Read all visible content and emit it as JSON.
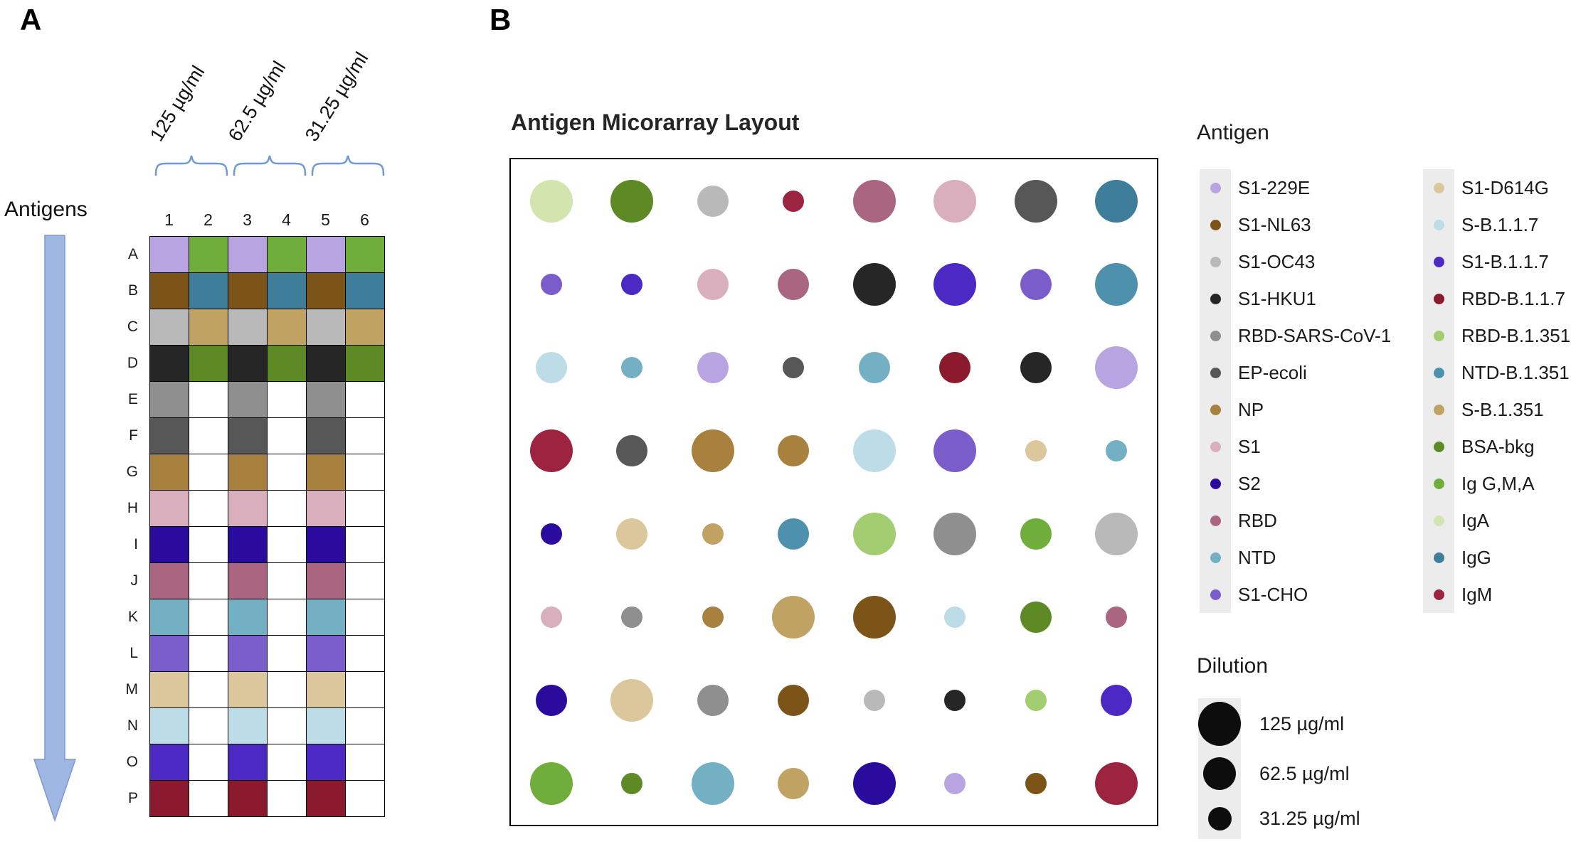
{
  "palette": {
    "S1-229E": "#b7a4e0",
    "S1-NL63": "#7d5418",
    "S1-OC43": "#b9b9b9",
    "S1-HKU1": "#262626",
    "RBD-SARS-CoV-1": "#8f8f8f",
    "EP-ecoli": "#575757",
    "NP": "#a8813e",
    "S1": "#d9afbd",
    "S2": "#2a0b9e",
    "RBD": "#aa6580",
    "NTD": "#74b0c4",
    "S1-CHO": "#7a5ccb",
    "S1-D614G": "#dcc79c",
    "S-B.1.1.7": "#bcdce8",
    "S1-B.1.1.7": "#4c28c4",
    "RBD-B.1.1.7": "#8c1a2e",
    "RBD-B.1.351": "#a2cd70",
    "NTD-B.1.351": "#4e91ad",
    "S-B.1.351": "#c0a263",
    "BSA-bkg": "#5d8a24",
    "Ig G,M,A": "#6fae3a",
    "IgA": "#d3e5ae",
    "IgG": "#3f7e9b",
    "IgM": "#9c2440"
  },
  "panel_a": {
    "label": "A",
    "axis_label": "Antigens",
    "concentration_labels": [
      "125 µg/ml",
      "62.5 µg/ml",
      "31.25 µg/ml"
    ],
    "column_headers": [
      "1",
      "2",
      "3",
      "4",
      "5",
      "6"
    ],
    "row_labels": [
      "A",
      "B",
      "C",
      "D",
      "E",
      "F",
      "G",
      "H",
      "I",
      "J",
      "K",
      "L",
      "M",
      "N",
      "O",
      "P"
    ],
    "grid": [
      [
        "S1-229E",
        "Ig G,M,A",
        "S1-229E",
        "Ig G,M,A",
        "S1-229E",
        "Ig G,M,A"
      ],
      [
        "S1-NL63",
        "IgG",
        "S1-NL63",
        "IgG",
        "S1-NL63",
        "IgG"
      ],
      [
        "S1-OC43",
        "S-B.1.351",
        "S1-OC43",
        "S-B.1.351",
        "S1-OC43",
        "S-B.1.351"
      ],
      [
        "S1-HKU1",
        "BSA-bkg",
        "S1-HKU1",
        "BSA-bkg",
        "S1-HKU1",
        "BSA-bkg"
      ],
      [
        "RBD-SARS-CoV-1",
        null,
        "RBD-SARS-CoV-1",
        null,
        "RBD-SARS-CoV-1",
        null
      ],
      [
        "EP-ecoli",
        null,
        "EP-ecoli",
        null,
        "EP-ecoli",
        null
      ],
      [
        "NP",
        null,
        "NP",
        null,
        "NP",
        null
      ],
      [
        "S1",
        null,
        "S1",
        null,
        "S1",
        null
      ],
      [
        "S2",
        null,
        "S2",
        null,
        "S2",
        null
      ],
      [
        "RBD",
        null,
        "RBD",
        null,
        "RBD",
        null
      ],
      [
        "NTD",
        null,
        "NTD",
        null,
        "NTD",
        null
      ],
      [
        "S1-CHO",
        null,
        "S1-CHO",
        null,
        "S1-CHO",
        null
      ],
      [
        "S1-D614G",
        null,
        "S1-D614G",
        null,
        "S1-D614G",
        null
      ],
      [
        "S-B.1.1.7",
        null,
        "S-B.1.1.7",
        null,
        "S-B.1.1.7",
        null
      ],
      [
        "S1-B.1.1.7",
        null,
        "S1-B.1.1.7",
        null,
        "S1-B.1.1.7",
        null
      ],
      [
        "RBD-B.1.1.7",
        null,
        "RBD-B.1.1.7",
        null,
        "RBD-B.1.1.7",
        null
      ]
    ]
  },
  "panel_b": {
    "label": "B",
    "title": "Antigen Micorarray Layout",
    "dots": [
      [
        {
          "c": "IgA",
          "s": "l"
        },
        {
          "c": "BSA-bkg",
          "s": "l"
        },
        {
          "c": "S1-OC43",
          "s": "m"
        },
        {
          "c": "IgM",
          "s": "s"
        },
        {
          "c": "RBD",
          "s": "l"
        },
        {
          "c": "S1",
          "s": "l"
        },
        {
          "c": "EP-ecoli",
          "s": "l"
        },
        {
          "c": "IgG",
          "s": "l"
        }
      ],
      [
        {
          "c": "S1-CHO",
          "s": "s"
        },
        {
          "c": "S1-B.1.1.7",
          "s": "s"
        },
        {
          "c": "S1",
          "s": "m"
        },
        {
          "c": "RBD",
          "s": "m"
        },
        {
          "c": "S1-HKU1",
          "s": "l"
        },
        {
          "c": "S1-B.1.1.7",
          "s": "l"
        },
        {
          "c": "S1-CHO",
          "s": "m"
        },
        {
          "c": "NTD-B.1.351",
          "s": "l"
        }
      ],
      [
        {
          "c": "S-B.1.1.7",
          "s": "m"
        },
        {
          "c": "NTD",
          "s": "s"
        },
        {
          "c": "S1-229E",
          "s": "m"
        },
        {
          "c": "EP-ecoli",
          "s": "s"
        },
        {
          "c": "NTD",
          "s": "m"
        },
        {
          "c": "RBD-B.1.1.7",
          "s": "m"
        },
        {
          "c": "S1-HKU1",
          "s": "m"
        },
        {
          "c": "S1-229E",
          "s": "l"
        }
      ],
      [
        {
          "c": "IgM",
          "s": "l"
        },
        {
          "c": "EP-ecoli",
          "s": "m"
        },
        {
          "c": "NP",
          "s": "l"
        },
        {
          "c": "NP",
          "s": "m"
        },
        {
          "c": "S-B.1.1.7",
          "s": "l"
        },
        {
          "c": "S1-CHO",
          "s": "l"
        },
        {
          "c": "S1-D614G",
          "s": "s"
        },
        {
          "c": "NTD",
          "s": "s"
        }
      ],
      [
        {
          "c": "S2",
          "s": "s"
        },
        {
          "c": "S1-D614G",
          "s": "m"
        },
        {
          "c": "S-B.1.351",
          "s": "s"
        },
        {
          "c": "NTD-B.1.351",
          "s": "m"
        },
        {
          "c": "RBD-B.1.351",
          "s": "l"
        },
        {
          "c": "RBD-SARS-CoV-1",
          "s": "l"
        },
        {
          "c": "Ig G,M,A",
          "s": "m"
        },
        {
          "c": "S1-OC43",
          "s": "l"
        }
      ],
      [
        {
          "c": "S1",
          "s": "s"
        },
        {
          "c": "RBD-SARS-CoV-1",
          "s": "s"
        },
        {
          "c": "NP",
          "s": "s"
        },
        {
          "c": "S-B.1.351",
          "s": "l"
        },
        {
          "c": "S1-NL63",
          "s": "l"
        },
        {
          "c": "S-B.1.1.7",
          "s": "s"
        },
        {
          "c": "BSA-bkg",
          "s": "m"
        },
        {
          "c": "RBD",
          "s": "s"
        }
      ],
      [
        {
          "c": "S2",
          "s": "m"
        },
        {
          "c": "S1-D614G",
          "s": "l"
        },
        {
          "c": "RBD-SARS-CoV-1",
          "s": "m"
        },
        {
          "c": "S1-NL63",
          "s": "m"
        },
        {
          "c": "S1-OC43",
          "s": "s"
        },
        {
          "c": "S1-HKU1",
          "s": "s"
        },
        {
          "c": "RBD-B.1.351",
          "s": "s"
        },
        {
          "c": "S1-B.1.1.7",
          "s": "m"
        }
      ],
      [
        {
          "c": "Ig G,M,A",
          "s": "l"
        },
        {
          "c": "BSA-bkg",
          "s": "s"
        },
        {
          "c": "NTD",
          "s": "l"
        },
        {
          "c": "S-B.1.351",
          "s": "m"
        },
        {
          "c": "S2",
          "s": "l"
        },
        {
          "c": "S1-229E",
          "s": "s"
        },
        {
          "c": "S1-NL63",
          "s": "s"
        },
        {
          "c": "IgM",
          "s": "l"
        }
      ]
    ],
    "legend": {
      "antigen_title": "Antigen",
      "column1": [
        "S1-229E",
        "S1-NL63",
        "S1-OC43",
        "S1-HKU1",
        "RBD-SARS-CoV-1",
        "EP-ecoli",
        "NP",
        "S1",
        "S2",
        "RBD",
        "NTD",
        "S1-CHO"
      ],
      "column2": [
        "S1-D614G",
        "S-B.1.1.7",
        "S1-B.1.1.7",
        "RBD-B.1.1.7",
        "RBD-B.1.351",
        "NTD-B.1.351",
        "S-B.1.351",
        "BSA-bkg",
        "Ig G,M,A",
        "IgA",
        "IgG",
        "IgM"
      ],
      "dilution_title": "Dilution",
      "dilution": [
        {
          "label": "125 µg/ml",
          "size": "l"
        },
        {
          "label": "62.5 µg/ml",
          "size": "m"
        },
        {
          "label": "31.25 µg/ml",
          "size": "s"
        }
      ]
    }
  },
  "colors": {
    "arrow_fill": "#9db6e2",
    "arrow_stroke": "#7e99cc",
    "brace_stroke": "#6f98d4",
    "legend_strip": "#ececec",
    "dilution_dot": "#0d0d0d"
  }
}
